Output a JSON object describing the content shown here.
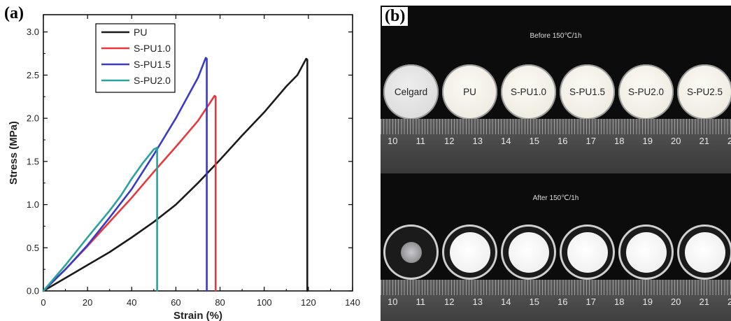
{
  "panel_a_label": "(a)",
  "panel_b_label": "(b)",
  "chart_data": {
    "type": "line",
    "title": "",
    "xlabel": "Strain (%)",
    "ylabel": "Stress (MPa)",
    "xlim": [
      0,
      140
    ],
    "ylim": [
      0,
      3.2
    ],
    "xticks": [
      "0",
      "20",
      "40",
      "60",
      "80",
      "100",
      "120",
      "140"
    ],
    "yticks": [
      "0.0",
      "0.5",
      "1.0",
      "1.5",
      "2.0",
      "2.5",
      "3.0"
    ],
    "legend_position": "top-left",
    "series": [
      {
        "name": "PU",
        "color": "#1a1a1a",
        "x": [
          0,
          10,
          20,
          30,
          40,
          50,
          60,
          70,
          80,
          90,
          100,
          110,
          115,
          119,
          119.5,
          119.5
        ],
        "y": [
          0,
          0.15,
          0.3,
          0.45,
          0.62,
          0.8,
          1.0,
          1.25,
          1.52,
          1.8,
          2.07,
          2.37,
          2.5,
          2.69,
          2.68,
          0
        ]
      },
      {
        "name": "S-PU1.0",
        "color": "#e8383d",
        "x": [
          0,
          10,
          20,
          30,
          40,
          50,
          60,
          70,
          76,
          77.5,
          78,
          78
        ],
        "y": [
          0,
          0.25,
          0.52,
          0.8,
          1.08,
          1.38,
          1.67,
          1.97,
          2.2,
          2.26,
          2.25,
          0
        ]
      },
      {
        "name": "S-PU1.5",
        "color": "#3a3ac4",
        "x": [
          0,
          10,
          20,
          30,
          40,
          50,
          60,
          70,
          73.5,
          74,
          74
        ],
        "y": [
          0,
          0.25,
          0.53,
          0.85,
          1.18,
          1.58,
          2.0,
          2.47,
          2.7,
          2.69,
          0
        ]
      },
      {
        "name": "S-PU2.0",
        "color": "#2aa39a",
        "x": [
          0,
          10,
          20,
          30,
          35,
          40,
          45,
          50,
          51.5,
          51.5
        ],
        "y": [
          0,
          0.3,
          0.62,
          0.93,
          1.1,
          1.3,
          1.48,
          1.64,
          1.66,
          0
        ]
      }
    ]
  },
  "photo": {
    "before_title": "Before 150℃/1h",
    "after_title": "After 150℃/1h",
    "samples": [
      "Celgard",
      "PU",
      "S-PU1.0",
      "S-PU1.5",
      "S-PU2.0",
      "S-PU2.5"
    ],
    "ruler_top_numbers": [
      "10",
      "11",
      "12",
      "13",
      "14",
      "15",
      "16",
      "17",
      "18",
      "19",
      "20",
      "21",
      "2"
    ],
    "ruler_bottom_numbers": [
      "10",
      "11",
      "12",
      "13",
      "14",
      "15",
      "16",
      "17",
      "18",
      "19",
      "20",
      "21",
      "2"
    ]
  }
}
